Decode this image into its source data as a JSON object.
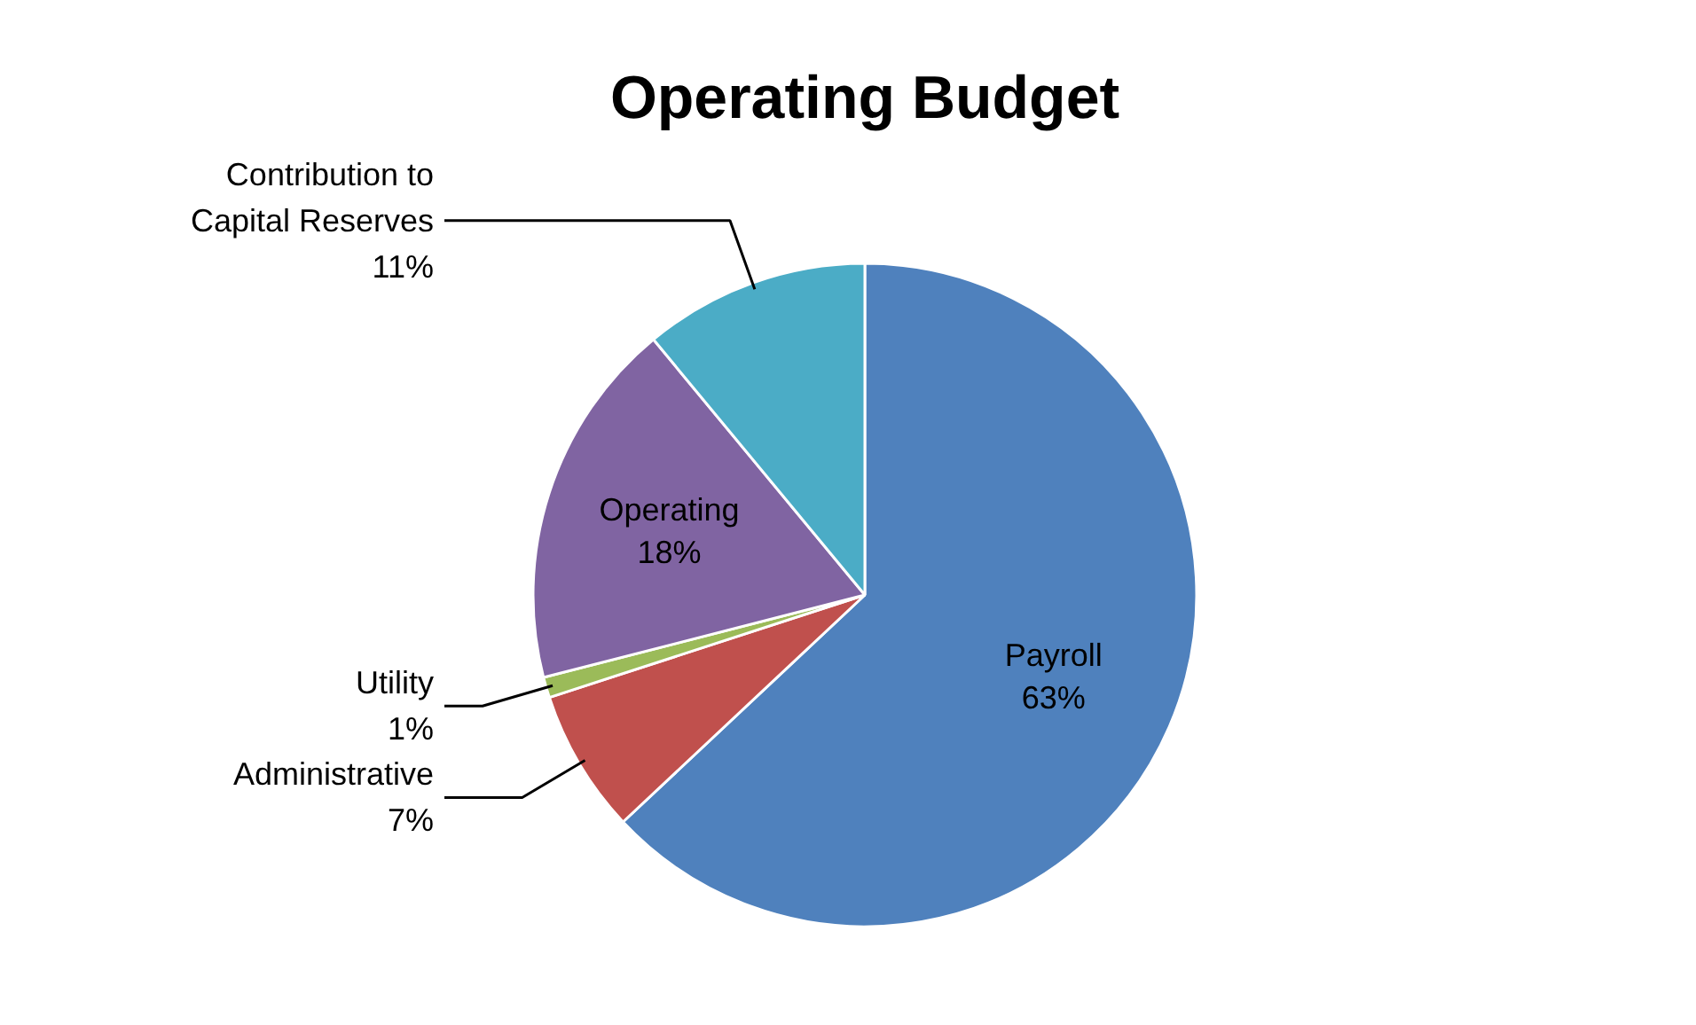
{
  "chart_data": {
    "type": "pie",
    "title": "Operating Budget",
    "categories": [
      "Payroll",
      "Administrative",
      "Utility",
      "Operating",
      "Contribution to Capital Reserves"
    ],
    "values": [
      63,
      7,
      1,
      18,
      11
    ],
    "colors": [
      "#4f81bd",
      "#c0504d",
      "#9bbb59",
      "#8064a2",
      "#4bacc6"
    ],
    "value_labels": [
      "63%",
      "7%",
      "1%",
      "18%",
      "11%"
    ]
  }
}
